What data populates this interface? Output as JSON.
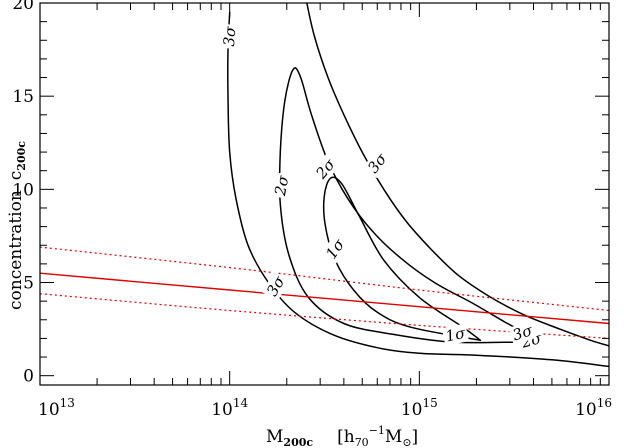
{
  "chart_data": {
    "type": "line",
    "title": "",
    "xlabel": {
      "main": "M",
      "sub": "200c",
      "unit_open": "[h",
      "unit_sub": "70",
      "unit_sup": "−1",
      "unit_msym": "M",
      "unit_msym_sub": "⊙",
      "unit_close": "]"
    },
    "ylabel": {
      "main": "concentration",
      "symbol": "c",
      "sub": "200c"
    },
    "xscale": "log",
    "xlim": [
      10000000000000.0,
      1e+16
    ],
    "ylim": [
      -0.5,
      20
    ],
    "x_ticks": [
      {
        "base": "10",
        "exp": "13",
        "value": 10000000000000.0
      },
      {
        "base": "10",
        "exp": "14",
        "value": 100000000000000.0
      },
      {
        "base": "10",
        "exp": "15",
        "value": 1000000000000000.0
      },
      {
        "base": "10",
        "exp": "16",
        "value": 1e+16
      }
    ],
    "y_ticks": [
      "0",
      "5",
      "10",
      "15",
      "20"
    ],
    "grid": false,
    "legend": "none",
    "colors": {
      "contours": "#000000",
      "relation": "#e00000"
    },
    "contours": [
      {
        "level": "1σ",
        "closed": true,
        "points": [
          [
            2100000000000000.0,
            1.9
          ],
          [
            900000000000000.0,
            2.6
          ],
          [
            600000000000000.0,
            3.4
          ],
          [
            450000000000000.0,
            4.6
          ],
          [
            360000000000000.0,
            6.2
          ],
          [
            320000000000000.0,
            8.0
          ],
          [
            315000000000000.0,
            9.6
          ],
          [
            340000000000000.0,
            10.6
          ],
          [
            390000000000000.0,
            10.3
          ],
          [
            480000000000000.0,
            8.6
          ],
          [
            650000000000000.0,
            6.2
          ],
          [
            1000000000000000.0,
            4.2
          ],
          [
            1700000000000000.0,
            2.6
          ],
          [
            2100000000000000.0,
            1.9
          ]
        ],
        "labels": [
          {
            "text": "1σ",
            "x": 360000000000000.0,
            "y": 6.8,
            "angle": -55
          },
          {
            "text": "1σ",
            "x": 1550000000000000.0,
            "y": 2.2,
            "angle": -12
          }
        ]
      },
      {
        "level": "2σ",
        "closed": true,
        "points": [
          [
            3300000000000000.0,
            1.8
          ],
          [
            1500000000000000.0,
            1.8
          ],
          [
            750000000000000.0,
            2.2
          ],
          [
            400000000000000.0,
            2.8
          ],
          [
            260000000000000.0,
            4.2
          ],
          [
            205000000000000.0,
            6.5
          ],
          [
            185000000000000.0,
            9.2
          ],
          [
            185000000000000.0,
            12.0
          ],
          [
            195000000000000.0,
            14.7
          ],
          [
            215000000000000.0,
            16.4
          ],
          [
            235000000000000.0,
            16.1
          ],
          [
            270000000000000.0,
            14.0
          ],
          [
            330000000000000.0,
            11.5
          ],
          [
            420000000000000.0,
            9.5
          ],
          [
            560000000000000.0,
            7.8
          ],
          [
            800000000000000.0,
            6.3
          ],
          [
            1200000000000000.0,
            5.0
          ],
          [
            1900000000000000.0,
            3.9
          ],
          [
            2800000000000000.0,
            2.9
          ],
          [
            3800000000000000.0,
            2.1
          ],
          [
            3300000000000000.0,
            1.8
          ]
        ],
        "labels": [
          {
            "text": "2σ",
            "x": 188000000000000.0,
            "y": 10.2,
            "angle": -80
          },
          {
            "text": "2σ",
            "x": 320000000000000.0,
            "y": 11.1,
            "angle": -50
          },
          {
            "text": "2σ",
            "x": 3900000000000000.0,
            "y": 1.9,
            "angle": -15
          }
        ]
      },
      {
        "level": "3σ",
        "closed": false,
        "points": [
          [
            1e+16,
            0.5
          ],
          [
            5000000000000000.0,
            0.85
          ],
          [
            2000000000000000.0,
            1.1
          ],
          [
            1000000000000000.0,
            1.2
          ],
          [
            600000000000000.0,
            1.5
          ],
          [
            350000000000000.0,
            2.2
          ],
          [
            220000000000000.0,
            3.4
          ],
          [
            160000000000000.0,
            5.0
          ],
          [
            125000000000000.0,
            7.0
          ],
          [
            108000000000000.0,
            9.5
          ],
          [
            100000000000000.0,
            12.0
          ],
          [
            98000000000000.0,
            15.0
          ],
          [
            98000000000000.0,
            17.5
          ],
          [
            100000000000000.0,
            19.5
          ]
        ],
        "labels": [
          {
            "text": "3σ",
            "x": 100000000000000.0,
            "y": 18.2,
            "angle": -85
          },
          {
            "text": "3σ",
            "x": 175000000000000.0,
            "y": 4.8,
            "angle": -60
          }
        ]
      },
      {
        "level": "3σ",
        "closed": false,
        "points": [
          [
            255000000000000.0,
            20.0
          ],
          [
            280000000000000.0,
            18.2
          ],
          [
            330000000000000.0,
            16.0
          ],
          [
            400000000000000.0,
            14.0
          ],
          [
            500000000000000.0,
            12.0
          ],
          [
            650000000000000.0,
            10.0
          ],
          [
            850000000000000.0,
            8.3
          ],
          [
            1150000000000000.0,
            6.8
          ],
          [
            1600000000000000.0,
            5.4
          ],
          [
            2300000000000000.0,
            4.3
          ],
          [
            3500000000000000.0,
            3.3
          ],
          [
            5500000000000000.0,
            2.5
          ],
          [
            8000000000000000.0,
            1.9
          ],
          [
            1e+16,
            1.6
          ]
        ],
        "labels": [
          {
            "text": "3σ",
            "x": 600000000000000.0,
            "y": 11.4,
            "angle": -52
          },
          {
            "text": "3σ",
            "x": 3500000000000000.0,
            "y": 2.3,
            "angle": -18
          }
        ]
      }
    ],
    "relation": {
      "name": "",
      "main": [
        [
          10000000000000.0,
          5.5
        ],
        [
          100000000000000.0,
          4.6
        ],
        [
          1000000000000000.0,
          3.7
        ],
        [
          1e+16,
          2.8
        ]
      ],
      "upper": [
        [
          10000000000000.0,
          6.9
        ],
        [
          100000000000000.0,
          5.8
        ],
        [
          1000000000000000.0,
          4.6
        ],
        [
          1e+16,
          3.5
        ]
      ],
      "lower": [
        [
          10000000000000.0,
          4.4
        ],
        [
          100000000000000.0,
          3.5
        ],
        [
          1000000000000000.0,
          2.7
        ],
        [
          1e+16,
          2.0
        ]
      ]
    }
  }
}
